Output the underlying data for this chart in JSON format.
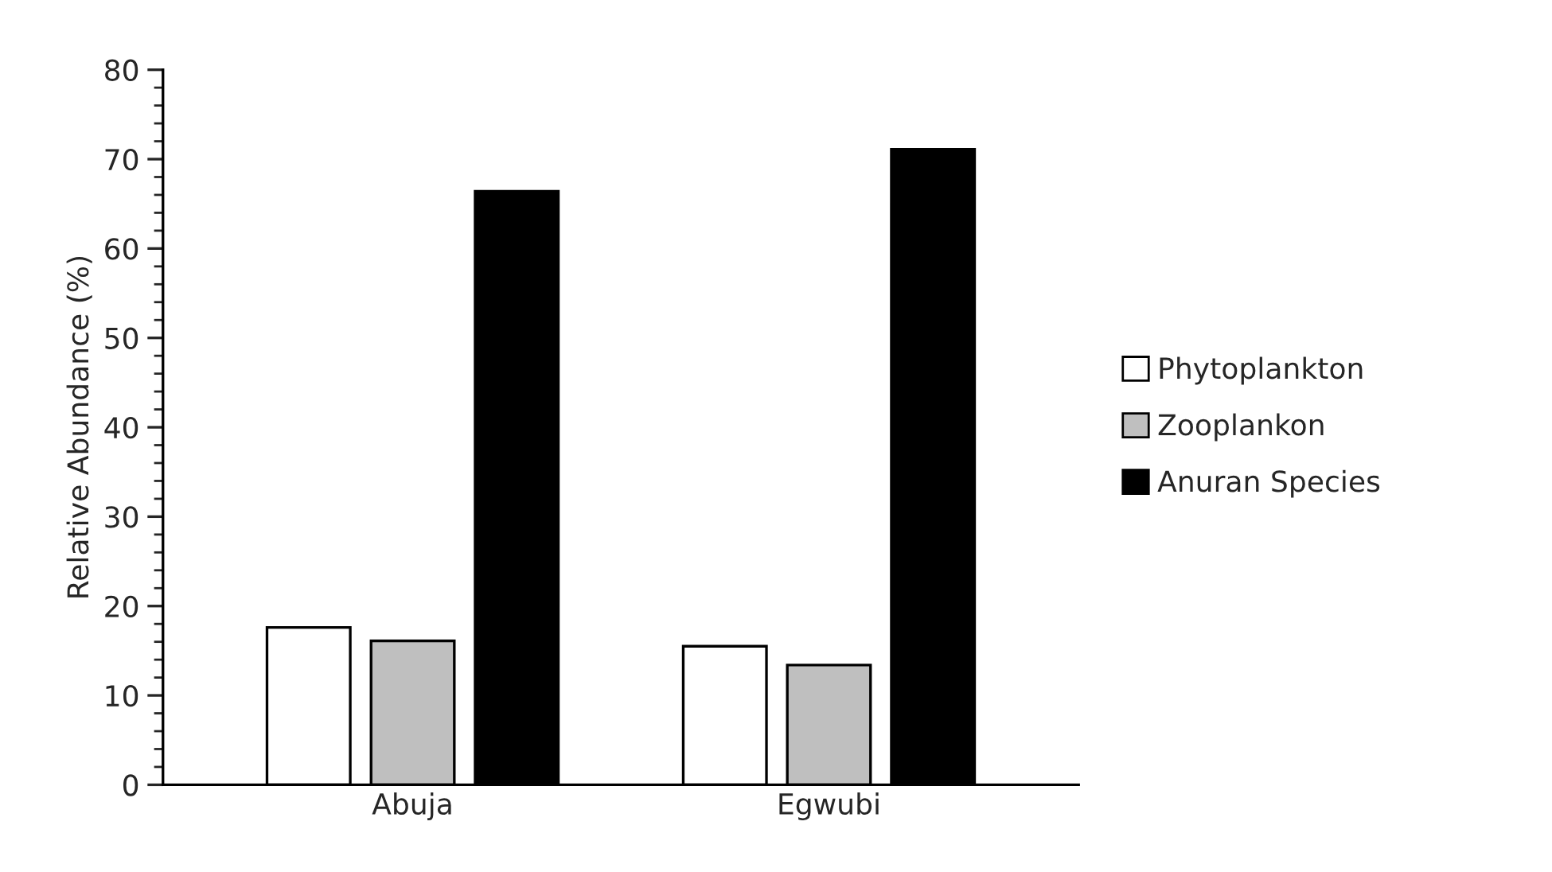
{
  "chart_data": {
    "type": "bar",
    "ylabel": "Relative Abundance (%)",
    "categories": [
      "Abuja",
      "Egwubi"
    ],
    "series": [
      {
        "name": "Phytoplankton",
        "color": "#ffffff",
        "values": [
          17.6,
          15.5
        ]
      },
      {
        "name": "Zooplankon",
        "color": "#bfbfbf",
        "values": [
          16.1,
          13.4
        ]
      },
      {
        "name": "Anuran Species",
        "color": "#000000",
        "values": [
          66.4,
          71.1
        ]
      }
    ],
    "ylim": [
      0,
      80
    ],
    "yticks": [
      0,
      10,
      20,
      30,
      40,
      50,
      60,
      70,
      80
    ],
    "grid": false,
    "legend": "right"
  }
}
